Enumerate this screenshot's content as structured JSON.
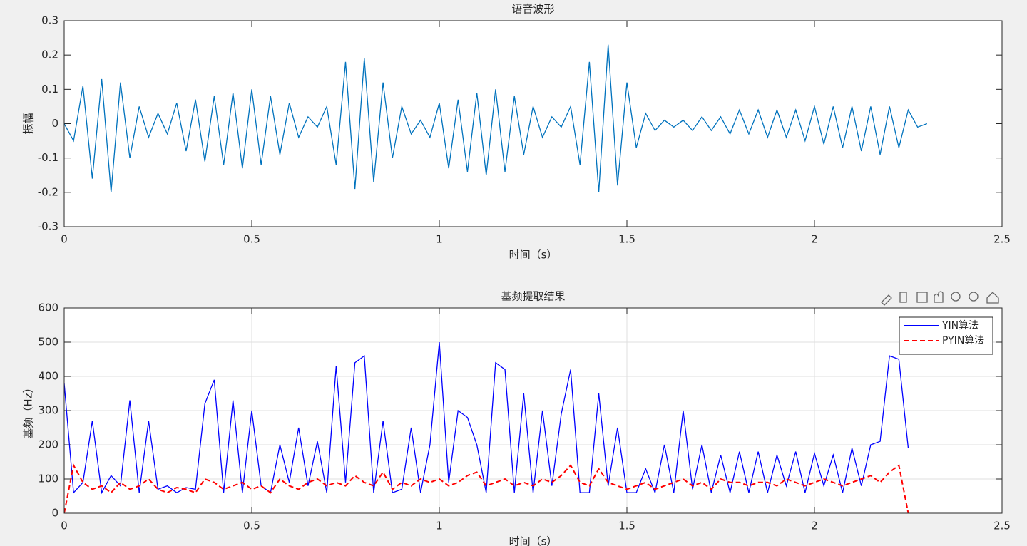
{
  "chart_data": [
    {
      "type": "line",
      "title": "语音波形",
      "xlabel": "时间（s）",
      "ylabel": "振幅",
      "grid": false,
      "xlim": [
        0,
        2.5
      ],
      "ylim": [
        -0.3,
        0.3
      ],
      "xticks": [
        0,
        0.5,
        1,
        1.5,
        2,
        2.5
      ],
      "yticks": [
        -0.3,
        -0.2,
        -0.1,
        0,
        0.1,
        0.2,
        0.3
      ],
      "x": [
        0,
        0.025,
        0.05,
        0.075,
        0.1,
        0.125,
        0.15,
        0.175,
        0.2,
        0.225,
        0.25,
        0.275,
        0.3,
        0.325,
        0.35,
        0.375,
        0.4,
        0.425,
        0.45,
        0.475,
        0.5,
        0.525,
        0.55,
        0.575,
        0.6,
        0.625,
        0.65,
        0.675,
        0.7,
        0.725,
        0.75,
        0.775,
        0.8,
        0.825,
        0.85,
        0.875,
        0.9,
        0.925,
        0.95,
        0.975,
        1,
        1.025,
        1.05,
        1.075,
        1.1,
        1.125,
        1.15,
        1.175,
        1.2,
        1.225,
        1.25,
        1.275,
        1.3,
        1.325,
        1.35,
        1.375,
        1.4,
        1.425,
        1.45,
        1.475,
        1.5,
        1.525,
        1.55,
        1.575,
        1.6,
        1.625,
        1.65,
        1.675,
        1.7,
        1.725,
        1.75,
        1.775,
        1.8,
        1.825,
        1.85,
        1.875,
        1.9,
        1.925,
        1.95,
        1.975,
        2,
        2.025,
        2.05,
        2.075,
        2.1,
        2.125,
        2.15,
        2.175,
        2.2,
        2.225,
        2.25,
        2.275,
        2.3
      ],
      "series": [
        {
          "color": "#0072bd",
          "linestyle": "-",
          "values": [
            0,
            -0.05,
            0.11,
            -0.16,
            0.13,
            -0.2,
            0.12,
            -0.1,
            0.05,
            -0.04,
            0.03,
            -0.03,
            0.06,
            -0.08,
            0.07,
            -0.11,
            0.08,
            -0.12,
            0.09,
            -0.13,
            0.1,
            -0.12,
            0.08,
            -0.09,
            0.06,
            -0.04,
            0.02,
            -0.01,
            0.05,
            -0.12,
            0.18,
            -0.19,
            0.19,
            -0.17,
            0.12,
            -0.1,
            0.05,
            -0.03,
            0.01,
            -0.04,
            0.06,
            -0.13,
            0.07,
            -0.14,
            0.09,
            -0.15,
            0.1,
            -0.14,
            0.08,
            -0.09,
            0.05,
            -0.04,
            0.02,
            -0.01,
            0.05,
            -0.12,
            0.18,
            -0.2,
            0.23,
            -0.18,
            0.12,
            -0.07,
            0.03,
            -0.02,
            0.01,
            -0.01,
            0.01,
            -0.02,
            0.02,
            -0.02,
            0.02,
            -0.03,
            0.04,
            -0.03,
            0.04,
            -0.04,
            0.04,
            -0.04,
            0.04,
            -0.05,
            0.05,
            -0.06,
            0.05,
            -0.07,
            0.05,
            -0.08,
            0.05,
            -0.09,
            0.05,
            -0.07,
            0.04,
            -0.01,
            0
          ]
        }
      ]
    },
    {
      "type": "line",
      "title": "基频提取结果",
      "xlabel": "时间（s）",
      "ylabel": "基频（Hz）",
      "grid": true,
      "legend": "northeast",
      "xlim": [
        0,
        2.5
      ],
      "ylim": [
        0,
        600
      ],
      "xticks": [
        0,
        0.5,
        1,
        1.5,
        2,
        2.5
      ],
      "yticks": [
        0,
        100,
        200,
        300,
        400,
        500,
        600
      ],
      "x": [
        0,
        0.025,
        0.05,
        0.075,
        0.1,
        0.125,
        0.15,
        0.175,
        0.2,
        0.225,
        0.25,
        0.275,
        0.3,
        0.325,
        0.35,
        0.375,
        0.4,
        0.425,
        0.45,
        0.475,
        0.5,
        0.525,
        0.55,
        0.575,
        0.6,
        0.625,
        0.65,
        0.675,
        0.7,
        0.725,
        0.75,
        0.775,
        0.8,
        0.825,
        0.85,
        0.875,
        0.9,
        0.925,
        0.95,
        0.975,
        1,
        1.025,
        1.05,
        1.075,
        1.1,
        1.125,
        1.15,
        1.175,
        1.2,
        1.225,
        1.25,
        1.275,
        1.3,
        1.325,
        1.35,
        1.375,
        1.4,
        1.425,
        1.45,
        1.475,
        1.5,
        1.525,
        1.55,
        1.575,
        1.6,
        1.625,
        1.65,
        1.675,
        1.7,
        1.725,
        1.75,
        1.775,
        1.8,
        1.825,
        1.85,
        1.875,
        1.9,
        1.925,
        1.95,
        1.975,
        2,
        2.025,
        2.05,
        2.075,
        2.1,
        2.125,
        2.15,
        2.175,
        2.2,
        2.225,
        2.25
      ],
      "series": [
        {
          "name": "YIN算法",
          "color": "#0000ff",
          "linestyle": "-",
          "values": [
            380,
            60,
            90,
            270,
            60,
            110,
            80,
            330,
            60,
            270,
            70,
            80,
            60,
            75,
            70,
            320,
            390,
            60,
            330,
            60,
            300,
            80,
            60,
            200,
            90,
            250,
            80,
            210,
            60,
            430,
            90,
            440,
            460,
            60,
            270,
            60,
            70,
            250,
            60,
            200,
            500,
            90,
            300,
            280,
            200,
            60,
            440,
            420,
            60,
            350,
            60,
            300,
            80,
            290,
            420,
            60,
            60,
            350,
            80,
            250,
            60,
            60,
            130,
            60,
            200,
            60,
            300,
            70,
            200,
            60,
            170,
            60,
            180,
            60,
            180,
            60,
            170,
            80,
            180,
            60,
            175,
            80,
            170,
            60,
            190,
            80,
            200,
            210,
            460,
            450,
            190
          ]
        },
        {
          "name": "PYIN算法",
          "color": "#ff0000",
          "linestyle": "--",
          "values": [
            0,
            140,
            90,
            70,
            80,
            60,
            90,
            70,
            80,
            100,
            70,
            60,
            75,
            70,
            60,
            100,
            90,
            70,
            80,
            90,
            70,
            80,
            60,
            100,
            80,
            70,
            90,
            100,
            80,
            90,
            80,
            110,
            90,
            80,
            120,
            70,
            90,
            80,
            100,
            90,
            100,
            80,
            90,
            110,
            120,
            80,
            90,
            100,
            80,
            90,
            80,
            100,
            90,
            110,
            140,
            90,
            80,
            130,
            90,
            80,
            70,
            80,
            90,
            70,
            80,
            90,
            100,
            80,
            90,
            70,
            100,
            90,
            90,
            80,
            90,
            90,
            80,
            100,
            90,
            80,
            90,
            100,
            90,
            80,
            90,
            100,
            110,
            90,
            120,
            140,
            0
          ]
        }
      ]
    }
  ]
}
